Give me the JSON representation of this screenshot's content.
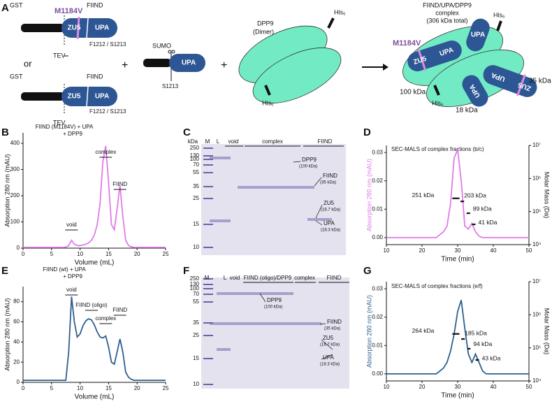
{
  "panel_labels": [
    "A",
    "B",
    "C",
    "D",
    "E",
    "F",
    "G"
  ],
  "diagram": {
    "construct_a": {
      "tag": "GST",
      "domain": "FIIND",
      "mutation": "M1184V",
      "zu5": "ZU5",
      "upa": "UPA",
      "site": "F1212 / S1213",
      "protease": "TEV"
    },
    "or": "or",
    "construct_b": {
      "tag": "GST",
      "domain": "FIIND",
      "zu5": "ZU5",
      "upa": "UPA",
      "site": "F1212 / S1213",
      "protease": "TEV"
    },
    "plus": "+",
    "sumo_construct": {
      "tag": "SUMO",
      "upa": "UPA",
      "site": "S1213"
    },
    "dpp9": {
      "name": "DPP9",
      "state": "(Dimer)",
      "his_top": "His₆",
      "his_bottom": "His₆"
    },
    "complex": {
      "title": [
        "FIIND/UPA/DPP9",
        "complex",
        "(306 kDa total)"
      ],
      "mutation": "M1184V",
      "zu5": "ZU5",
      "upa": "UPA",
      "upa_sumo": "UPA",
      "his_top": "His₆",
      "his_bottom": "His₆",
      "dpp9_mass": "100 kDa",
      "fiind_mass": "35 kDa",
      "upa_mass": "18 kDa",
      "zu5_b": "ZU5",
      "upa_b": "UPA",
      "upa_c": "UPA"
    }
  },
  "chart_data": [
    {
      "type": "line",
      "title": "FIIND (M1184V) + UPA",
      "subtitle": "+ DPP9",
      "xlabel": "Volume (mL)",
      "ylabel": "Absorption 280 nm (mAU)",
      "x": [
        0,
        0.5,
        1,
        1.5,
        2,
        2.5,
        3,
        3.5,
        4,
        4.5,
        5,
        5.5,
        6,
        6.5,
        7,
        7.5,
        8,
        8.5,
        9,
        9.5,
        10,
        10.5,
        11,
        11.5,
        12,
        12.5,
        13,
        13.5,
        14,
        14.5,
        15,
        15.5,
        16,
        16.5,
        17,
        17.5,
        18,
        18.5,
        19,
        19.5,
        20,
        20.5,
        21,
        21.5,
        22,
        22.5,
        23,
        23.5,
        24,
        24.5,
        25
      ],
      "series": [
        {
          "color": "#e07be8",
          "values": [
            3,
            3,
            3,
            3,
            3,
            3,
            3,
            3,
            3,
            3,
            3,
            3,
            3,
            3,
            3,
            4,
            10,
            30,
            15,
            10,
            10,
            12,
            15,
            20,
            30,
            50,
            90,
            170,
            330,
            390,
            250,
            90,
            70,
            150,
            240,
            120,
            30,
            10,
            5,
            3,
            3,
            3,
            3,
            3,
            3,
            3,
            3,
            3,
            3,
            3,
            3
          ]
        }
      ],
      "xlim": [
        0,
        25
      ],
      "xticks": [
        0,
        5,
        10,
        15,
        20,
        25
      ],
      "ylim": [
        0,
        440
      ],
      "yticks": [
        0,
        100,
        200,
        300,
        400
      ],
      "annotations": [
        "void",
        "complex",
        "FIIND"
      ]
    },
    {
      "type": "line",
      "title": "SEC-MALS of complex fractions (b/c)",
      "xlabel": "Time (min)",
      "ylabel": "Absorption 280 nm (mAU)",
      "y2label": "Molar Mass (Da)",
      "x": [
        10,
        11,
        12,
        13,
        14,
        15,
        16,
        17,
        18,
        19,
        20,
        21,
        22,
        23,
        24,
        25,
        26,
        27,
        28,
        29,
        30,
        31,
        32,
        33,
        34,
        35,
        36,
        37,
        38,
        39,
        40,
        41,
        42,
        43,
        44,
        45,
        46,
        47,
        48,
        49,
        50
      ],
      "series": [
        {
          "color": "#e07be8",
          "values": [
            0,
            0,
            0,
            0,
            0,
            0,
            0,
            0,
            0,
            0,
            0,
            0,
            0,
            0,
            0,
            0.001,
            0.002,
            0.004,
            0.012,
            0.028,
            0.031,
            0.02,
            0.004,
            0.003,
            0.005,
            0.002,
            0.0005,
            0,
            0,
            0,
            0,
            0,
            0,
            0,
            0,
            0,
            0,
            0,
            0,
            0,
            0
          ]
        }
      ],
      "mass_segments": [
        {
          "x": [
            28.5,
            30.5
          ],
          "values": [
            251000,
            251000
          ],
          "label": "251 kDa"
        },
        {
          "x": [
            30.8,
            31.8
          ],
          "values": [
            203000,
            203000
          ],
          "label": "203 kDa"
        },
        {
          "x": [
            32.5,
            33.5
          ],
          "values": [
            89000,
            89000
          ],
          "label": "89 kDa"
        },
        {
          "x": [
            34,
            35
          ],
          "values": [
            41000,
            41000
          ],
          "label": "41 kDa"
        }
      ],
      "xlim": [
        10,
        50
      ],
      "xticks": [
        10,
        20,
        30,
        40,
        50
      ],
      "ylim": [
        -0.0025,
        0.0325
      ],
      "yticks": [
        {
          "value": 0,
          "label": "0.00"
        },
        {
          "value": 0.01,
          "label": "0.01"
        },
        {
          "value": 0.02,
          "label": "0.02"
        },
        {
          "value": 0.03,
          "label": "0.03"
        }
      ],
      "y2log": true,
      "y2lim": [
        10000,
        10000000
      ],
      "y2ticks": [
        {
          "value": 10000,
          "label": "10⁴"
        },
        {
          "value": 100000,
          "label": "10⁵"
        },
        {
          "value": 1000000,
          "label": "10⁶"
        },
        {
          "value": 10000000,
          "label": "10⁷"
        }
      ]
    },
    {
      "type": "line",
      "title": "FIIND (wt) + UPA",
      "subtitle": "+ DPP9",
      "xlabel": "Volume (mL)",
      "ylabel": "Absorption 280 nm (mAU)",
      "x": [
        0,
        0.5,
        1,
        1.5,
        2,
        2.5,
        3,
        3.5,
        4,
        4.5,
        5,
        5.5,
        6,
        6.5,
        7,
        7.5,
        8,
        8.5,
        9,
        9.5,
        10,
        10.5,
        11,
        11.5,
        12,
        12.5,
        13,
        13.5,
        14,
        14.5,
        15,
        15.5,
        16,
        16.5,
        17,
        17.5,
        18,
        18.5,
        19,
        19.5,
        20,
        20.5,
        21,
        21.5,
        22,
        22.5,
        23,
        23.5,
        24,
        24.5,
        25
      ],
      "series": [
        {
          "color": "#2d5f8f",
          "values": [
            2,
            2,
            2,
            2,
            2,
            2,
            2,
            2,
            2,
            2,
            2,
            2,
            2,
            2,
            2,
            2,
            30,
            85,
            60,
            45,
            48,
            56,
            61,
            63,
            62,
            57,
            50,
            45,
            44,
            46,
            35,
            20,
            18,
            30,
            43,
            30,
            10,
            5,
            3,
            2,
            2,
            2,
            2,
            2,
            2,
            2,
            2,
            2,
            2,
            2,
            2
          ]
        }
      ],
      "xlim": [
        0,
        25
      ],
      "xticks": [
        0,
        5,
        10,
        15,
        20,
        25
      ],
      "ylim": [
        0,
        95
      ],
      "yticks": [
        0,
        20,
        40,
        60,
        80
      ],
      "annotations": [
        "void",
        "FIIND (oligo)",
        "complex",
        "FIIND"
      ]
    },
    {
      "type": "line",
      "title": "SEC-MALS of complex fractions (e/f)",
      "xlabel": "Time (min)",
      "ylabel": "Absorption 280 nm (mAU)",
      "y2label": "Molar Mass (Da)",
      "x": [
        10,
        11,
        12,
        13,
        14,
        15,
        16,
        17,
        18,
        19,
        20,
        21,
        22,
        23,
        24,
        25,
        26,
        27,
        28,
        29,
        30,
        31,
        32,
        33,
        34,
        35,
        36,
        37,
        38,
        39,
        40,
        41,
        42,
        43,
        44,
        45,
        46,
        47,
        48,
        49,
        50
      ],
      "series": [
        {
          "color": "#2d5f8f",
          "values": [
            0,
            0,
            0,
            0,
            0,
            0,
            0,
            0,
            0,
            0,
            0,
            0,
            0,
            0,
            0,
            0.001,
            0.002,
            0.004,
            0.008,
            0.014,
            0.022,
            0.026,
            0.016,
            0.007,
            0.004,
            0.007,
            0.004,
            0.001,
            0,
            0,
            0,
            0,
            0,
            0,
            0,
            0,
            0,
            0,
            0,
            0,
            0
          ]
        }
      ],
      "mass_segments": [
        {
          "x": [
            28.5,
            30.5
          ],
          "values": [
            264000,
            264000
          ],
          "label": "264 kDa"
        },
        {
          "x": [
            31,
            32
          ],
          "values": [
            185000,
            185000
          ],
          "label": "185 kDa"
        },
        {
          "x": [
            32.8,
            33.6
          ],
          "values": [
            94000,
            94000
          ],
          "label": "94 kDa"
        },
        {
          "x": [
            35,
            36
          ],
          "values": [
            43000,
            43000
          ],
          "label": "43 kDa"
        }
      ],
      "xlim": [
        10,
        50
      ],
      "xticks": [
        10,
        20,
        30,
        40,
        50
      ],
      "ylim": [
        -0.0025,
        0.0325
      ],
      "yticks": [
        {
          "value": 0,
          "label": "0.00"
        },
        {
          "value": 0.01,
          "label": "0.01"
        },
        {
          "value": 0.02,
          "label": "0.02"
        },
        {
          "value": 0.03,
          "label": "0.03"
        }
      ],
      "y2log": true,
      "y2lim": [
        10000,
        10000000
      ],
      "y2ticks": [
        {
          "value": 10000,
          "label": "10⁴"
        },
        {
          "value": 100000,
          "label": "10⁵"
        },
        {
          "value": 1000000,
          "label": "10⁶"
        },
        {
          "value": 10000000,
          "label": "10⁷"
        }
      ]
    }
  ],
  "gels": [
    {
      "unit": "kDa",
      "ladder": [
        250,
        130,
        100,
        70,
        55,
        35,
        25,
        15,
        10
      ],
      "lanes": [
        "M",
        "L",
        "void",
        "complex",
        "FIIND"
      ],
      "bands": [
        {
          "name": "DPP9",
          "detail": "(100 kDa)"
        },
        {
          "name": "FIIND",
          "detail": "(35 kDa)"
        },
        {
          "name": "ZU5",
          "detail": "(16.7 kDa)"
        },
        {
          "name": "UPA",
          "detail": "(18.3 kDa)"
        }
      ]
    },
    {
      "ladder": [
        250,
        130,
        100,
        70,
        55,
        35,
        25,
        15,
        10
      ],
      "lanes": [
        "M",
        "L",
        "void",
        "FIIND (oligo)/DPP9",
        "complex",
        "FIIND"
      ],
      "bands": [
        {
          "name": "DPP9",
          "detail": "(100 kDa)"
        },
        {
          "name": "FIIND",
          "detail": "(35 kDa)"
        },
        {
          "name": "ZU5",
          "detail": "(16.7 kDa)"
        },
        {
          "name": "UPA",
          "detail": "(18.3 kDa)"
        }
      ]
    }
  ]
}
